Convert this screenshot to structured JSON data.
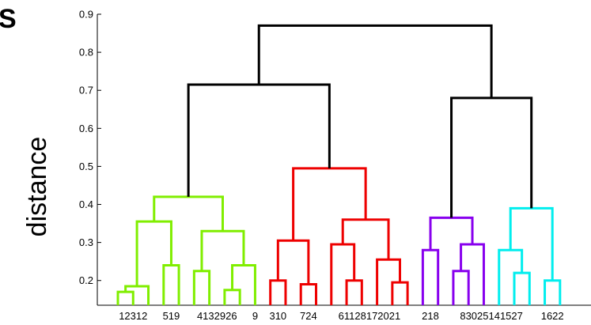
{
  "chart_data": {
    "type": "dendrogram",
    "ylabel": "distance",
    "corner_label": "S",
    "ylim": [
      0.135,
      0.9
    ],
    "yticks": [
      0.2,
      0.3,
      0.4,
      0.5,
      0.6,
      0.7,
      0.8,
      0.9
    ],
    "ytick_labels": [
      "0.2",
      "0.3",
      "0.4",
      "0.5",
      "0.6",
      "0.7",
      "0.8",
      "0.9"
    ],
    "grid": false,
    "leaf_order": [
      "1",
      "23",
      "12",
      "5",
      "19",
      "4",
      "13",
      "29",
      "26",
      "9",
      "3",
      "10",
      "7",
      "24",
      "6",
      "11",
      "28",
      "17",
      "20",
      "21",
      "2",
      "18",
      "8",
      "30",
      "25",
      "14",
      "15",
      "27",
      "16",
      "22"
    ],
    "leaf_label_groups": [
      "12312",
      "519",
      "4132926",
      "9",
      "310",
      "724",
      "61128172021",
      "218",
      "83025141527",
      "1622"
    ],
    "clusters": [
      {
        "color": "#80ee00"
      },
      {
        "color": "#ee0000"
      },
      {
        "color": "#8800ee"
      },
      {
        "color": "#00eeee"
      }
    ],
    "root_color": "#000000",
    "merges": [
      {
        "a": "L1",
        "b": "L23",
        "h": 0.17,
        "c": 0
      },
      {
        "a": "m0",
        "b": "L12",
        "h": 0.185,
        "c": 0
      },
      {
        "a": "L5",
        "b": "L19",
        "h": 0.24,
        "c": 0
      },
      {
        "a": "m1",
        "b": "m2",
        "h": 0.355,
        "c": 0
      },
      {
        "a": "L29",
        "b": "L26",
        "h": 0.175,
        "c": 0
      },
      {
        "a": "m4",
        "b": "L9",
        "h": 0.24,
        "c": 0
      },
      {
        "a": "L4",
        "b": "L13",
        "h": 0.225,
        "c": 0
      },
      {
        "a": "m6",
        "b": "m5",
        "h": 0.33,
        "c": 0
      },
      {
        "a": "m3",
        "b": "m7",
        "h": 0.42,
        "c": 0
      },
      {
        "a": "L3",
        "b": "L10",
        "h": 0.2,
        "c": 1
      },
      {
        "a": "L7",
        "b": "L24",
        "h": 0.19,
        "c": 1
      },
      {
        "a": "m9",
        "b": "m10",
        "h": 0.305,
        "c": 1
      },
      {
        "a": "L11",
        "b": "L28",
        "h": 0.2,
        "c": 1
      },
      {
        "a": "L6",
        "b": "m12",
        "h": 0.295,
        "c": 1
      },
      {
        "a": "L20",
        "b": "L21",
        "h": 0.195,
        "c": 1
      },
      {
        "a": "L17",
        "b": "m14",
        "h": 0.255,
        "c": 1
      },
      {
        "a": "m13",
        "b": "m15",
        "h": 0.36,
        "c": 1
      },
      {
        "a": "m11",
        "b": "m16",
        "h": 0.495,
        "c": 1
      },
      {
        "a": "m8",
        "b": "m17",
        "h": 0.715,
        "c": -1
      },
      {
        "a": "L2",
        "b": "L18",
        "h": 0.28,
        "c": 2
      },
      {
        "a": "L8",
        "b": "L30",
        "h": 0.225,
        "c": 2
      },
      {
        "a": "m20",
        "b": "L25",
        "h": 0.295,
        "c": 2
      },
      {
        "a": "m19",
        "b": "m21",
        "h": 0.365,
        "c": 2
      },
      {
        "a": "L15",
        "b": "L27",
        "h": 0.22,
        "c": 3
      },
      {
        "a": "L14",
        "b": "m23",
        "h": 0.28,
        "c": 3
      },
      {
        "a": "L16",
        "b": "L22",
        "h": 0.2,
        "c": 3
      },
      {
        "a": "m24",
        "b": "m25",
        "h": 0.39,
        "c": 3
      },
      {
        "a": "m22",
        "b": "m26",
        "h": 0.68,
        "c": -1
      },
      {
        "a": "m18",
        "b": "m27",
        "h": 0.87,
        "c": -1
      }
    ]
  }
}
